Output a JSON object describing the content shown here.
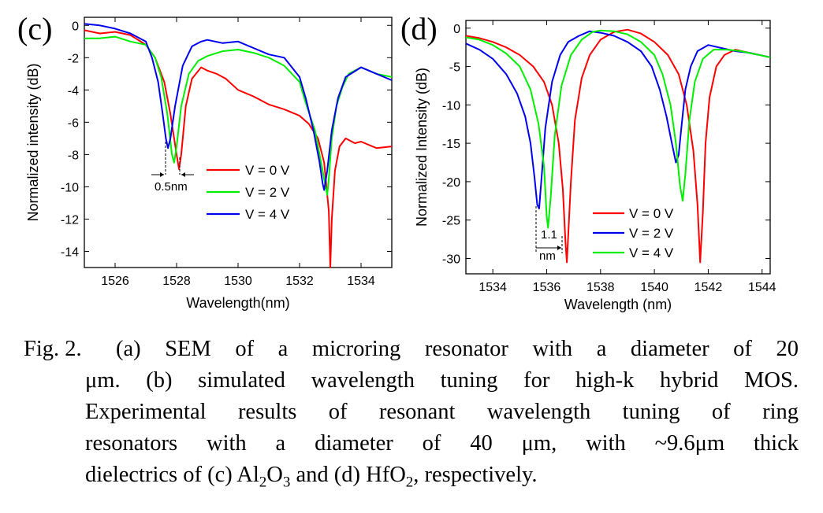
{
  "chart_data": [
    {
      "panel_label": "(c)",
      "type": "line",
      "xlabel": "Wavelength(nm)",
      "ylabel": "Normalized intensity (dB)",
      "xlim": [
        1525,
        1535
      ],
      "ylim": [
        -15,
        0.5
      ],
      "xticks": [
        1526,
        1528,
        1530,
        1532,
        1534
      ],
      "yticks": [
        0,
        -2,
        -4,
        -6,
        -8,
        -10,
        -12,
        -14
      ],
      "legend_position": "center-right",
      "series": [
        {
          "name": "V = 0 V",
          "color": "#ff0000",
          "x": [
            1525,
            1525.5,
            1526,
            1526.5,
            1527,
            1527.3,
            1527.6,
            1527.8,
            1528.0,
            1528.08,
            1528.15,
            1528.3,
            1528.5,
            1528.8,
            1529.0,
            1529.3,
            1529.6,
            1530,
            1530.5,
            1531,
            1531.5,
            1532,
            1532.3,
            1532.6,
            1532.8,
            1532.95,
            1533.0,
            1533.05,
            1533.15,
            1533.3,
            1533.5,
            1533.8,
            1534,
            1534.5,
            1535
          ],
          "y": [
            -0.3,
            -0.5,
            -0.4,
            -0.6,
            -1.2,
            -2.0,
            -3.5,
            -5.5,
            -8.0,
            -8.9,
            -8.0,
            -5.0,
            -3.3,
            -2.6,
            -2.8,
            -3.0,
            -3.3,
            -4.0,
            -4.4,
            -4.9,
            -5.2,
            -5.6,
            -6.1,
            -7.0,
            -8.5,
            -11.5,
            -15.0,
            -12.0,
            -9.0,
            -7.5,
            -7.0,
            -7.3,
            -7.2,
            -7.6,
            -7.5
          ]
        },
        {
          "name": "V = 2 V",
          "color": "#00ee00",
          "x": [
            1525,
            1525.5,
            1526,
            1526.5,
            1527,
            1527.3,
            1527.5,
            1527.7,
            1527.85,
            1527.92,
            1528.0,
            1528.15,
            1528.4,
            1528.7,
            1529,
            1529.5,
            1530,
            1530.5,
            1531,
            1531.5,
            1532,
            1532.2,
            1532.5,
            1532.7,
            1532.85,
            1532.9,
            1532.95,
            1533.05,
            1533.2,
            1533.4,
            1533.6,
            1534,
            1534.5,
            1535
          ],
          "y": [
            -0.8,
            -0.8,
            -0.7,
            -1.0,
            -1.2,
            -2.0,
            -3.2,
            -5.5,
            -8.0,
            -8.5,
            -7.5,
            -5.0,
            -3.0,
            -2.2,
            -1.9,
            -1.6,
            -1.5,
            -1.7,
            -2.0,
            -2.5,
            -3.5,
            -4.8,
            -6.5,
            -8.5,
            -10.0,
            -10.5,
            -9.5,
            -7.0,
            -5.0,
            -3.8,
            -3.0,
            -2.6,
            -3.0,
            -3.2
          ]
        },
        {
          "name": "V = 4 V",
          "color": "#0000ee",
          "x": [
            1525,
            1525.5,
            1526,
            1526.5,
            1527,
            1527.2,
            1527.4,
            1527.55,
            1527.65,
            1527.72,
            1527.8,
            1527.95,
            1528.2,
            1528.5,
            1528.8,
            1529,
            1529.5,
            1530,
            1530.5,
            1531,
            1531.5,
            1532,
            1532.2,
            1532.45,
            1532.65,
            1532.75,
            1532.8,
            1532.9,
            1533.05,
            1533.25,
            1533.5,
            1534,
            1534.5,
            1535
          ],
          "y": [
            0.1,
            0.0,
            -0.2,
            -0.5,
            -1.0,
            -2.0,
            -3.5,
            -5.5,
            -7.0,
            -7.6,
            -7.0,
            -5.0,
            -2.5,
            -1.3,
            -1.0,
            -0.9,
            -1.1,
            -1.0,
            -1.4,
            -1.8,
            -2.0,
            -3.2,
            -4.5,
            -6.5,
            -8.5,
            -9.8,
            -10.2,
            -9.0,
            -6.5,
            -4.5,
            -3.2,
            -2.6,
            -3.0,
            -3.4
          ]
        }
      ],
      "annotations": [
        "0.5nm"
      ]
    },
    {
      "panel_label": "(d)",
      "type": "line",
      "xlabel": "Wavelength (nm)",
      "ylabel": "Normalized Intensity (dB)",
      "xlim": [
        1533,
        1544.3
      ],
      "ylim": [
        -32,
        1
      ],
      "xticks": [
        1534,
        1536,
        1538,
        1540,
        1542,
        1544
      ],
      "yticks": [
        0,
        -5,
        -10,
        -15,
        -20,
        -25,
        -30
      ],
      "legend_position": "lower-right",
      "series": [
        {
          "name": "V = 0 V",
          "color": "#ff0000",
          "x": [
            1533,
            1533.5,
            1534,
            1534.5,
            1535,
            1535.5,
            1535.9,
            1536.2,
            1536.45,
            1536.6,
            1536.7,
            1536.75,
            1536.8,
            1536.9,
            1537.05,
            1537.3,
            1537.6,
            1538,
            1538.5,
            1539,
            1539.5,
            1540,
            1540.5,
            1540.9,
            1541.2,
            1541.45,
            1541.6,
            1541.7,
            1541.8,
            1541.9,
            1542.05,
            1542.3,
            1542.6,
            1543,
            1543.5,
            1544.3
          ],
          "y": [
            -1,
            -1.3,
            -1.8,
            -2.5,
            -3.5,
            -5.0,
            -7.0,
            -10.0,
            -15.0,
            -21.0,
            -28.0,
            -30.5,
            -27.0,
            -20.0,
            -12.0,
            -6.5,
            -3.5,
            -1.5,
            -0.5,
            -0.2,
            -0.7,
            -1.8,
            -3.5,
            -6.0,
            -10.0,
            -16.0,
            -23.0,
            -30.5,
            -24.0,
            -15.0,
            -9.0,
            -5.0,
            -3.5,
            -2.8,
            -3.2,
            -3.8
          ]
        },
        {
          "name": "V = 2 V",
          "color": "#0000ee",
          "x": [
            1533,
            1533.5,
            1534,
            1534.5,
            1534.9,
            1535.2,
            1535.4,
            1535.55,
            1535.65,
            1535.72,
            1535.8,
            1535.95,
            1536.2,
            1536.5,
            1536.8,
            1537.2,
            1537.6,
            1538,
            1538.5,
            1539,
            1539.5,
            1539.9,
            1540.2,
            1540.45,
            1540.65,
            1540.8,
            1540.9,
            1541.0,
            1541.15,
            1541.35,
            1541.6,
            1542,
            1542.5,
            1543,
            1543.5,
            1544.3
          ],
          "y": [
            -2,
            -2.8,
            -4.0,
            -6.0,
            -8.5,
            -11.5,
            -15.0,
            -19.5,
            -23.0,
            -23.5,
            -20.0,
            -13.0,
            -7.0,
            -3.5,
            -1.8,
            -1.0,
            -0.4,
            -0.6,
            -1.0,
            -1.8,
            -3.0,
            -5.0,
            -8.0,
            -11.5,
            -15.0,
            -17.5,
            -16.5,
            -13.0,
            -8.0,
            -5.0,
            -3.0,
            -2.2,
            -2.6,
            -3.0,
            -3.2,
            -3.8
          ]
        },
        {
          "name": "V = 4 V",
          "color": "#00ee00",
          "x": [
            1533,
            1533.5,
            1534,
            1534.5,
            1535,
            1535.4,
            1535.7,
            1535.9,
            1536.0,
            1536.05,
            1536.15,
            1536.3,
            1536.55,
            1536.9,
            1537.3,
            1537.7,
            1538,
            1538.5,
            1539,
            1539.5,
            1540,
            1540.3,
            1540.6,
            1540.8,
            1540.95,
            1541.05,
            1541.15,
            1541.3,
            1541.5,
            1541.8,
            1542.2,
            1542.7,
            1543.2,
            1544.3
          ],
          "y": [
            -1.2,
            -1.5,
            -2.2,
            -3.3,
            -5.0,
            -8.0,
            -12.5,
            -18.0,
            -24.5,
            -26.0,
            -22.0,
            -14.0,
            -7.5,
            -3.5,
            -1.5,
            -0.5,
            -0.3,
            -0.4,
            -0.8,
            -1.8,
            -3.5,
            -6.0,
            -10.0,
            -15.0,
            -20.5,
            -22.5,
            -19.0,
            -12.0,
            -7.0,
            -4.0,
            -2.8,
            -2.8,
            -3.0,
            -3.8
          ]
        }
      ],
      "annotations": [
        "1.1",
        "nm"
      ]
    }
  ],
  "caption": {
    "head": "Fig. 2.",
    "line1": "(a) SEM of a microring resonator with a diameter of 20",
    "line2": "μm. (b) simulated wavelength tuning for high-k hybrid MOS.",
    "line3": "Experimental results of resonant wavelength tuning of ring",
    "line4": "resonators with a diameter of 40 μm, with ~9.6μm thick",
    "line5_a": "dielectrics of  (c) Al",
    "line5_sub1": "2",
    "line5_b": "O",
    "line5_sub2": "3",
    "line5_c": " and (d) HfO",
    "line5_sub3": "2",
    "line5_d": ", respectively."
  }
}
